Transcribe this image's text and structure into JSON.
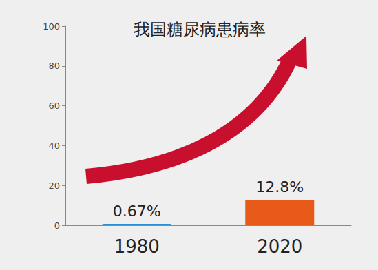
{
  "chart_data": {
    "type": "bar",
    "title": "我国糖尿病患病率",
    "categories": [
      "1980",
      "2020"
    ],
    "values": [
      0.67,
      12.8
    ],
    "value_labels": [
      "0.67%",
      "12.8%"
    ],
    "colors": [
      "#2b8fd8",
      "#e85a1a"
    ],
    "ylim": [
      0,
      100
    ],
    "yticks": [
      0,
      20,
      40,
      60,
      80,
      100
    ],
    "grid": false,
    "data_labels": true
  }
}
